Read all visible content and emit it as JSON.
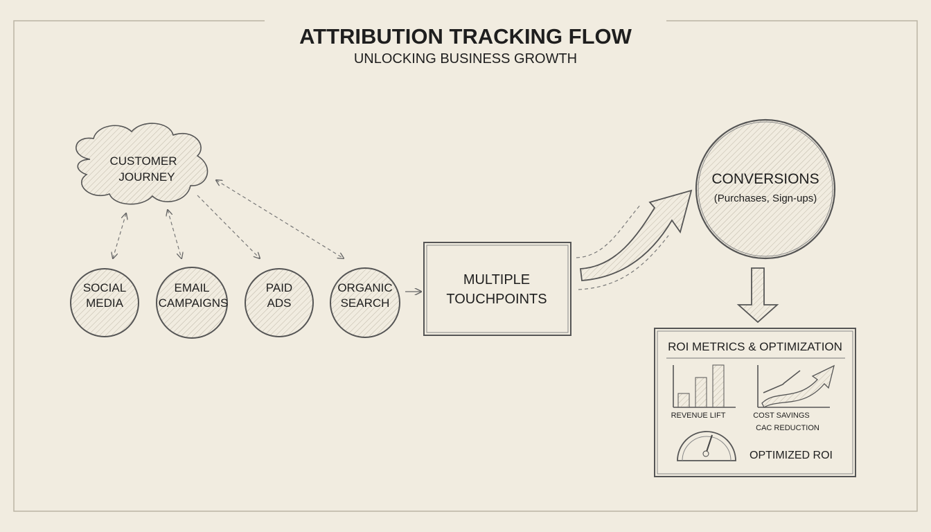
{
  "header": {
    "title": "ATTRIBUTION TRACKING FLOW",
    "subtitle": "UNLOCKING BUSINESS GROWTH"
  },
  "cloud": {
    "line1": "CUSTOMER",
    "line2": "JOURNEY"
  },
  "channels": [
    {
      "line1": "SOCIAL",
      "line2": "MEDIA"
    },
    {
      "line1": "EMAIL",
      "line2": "CAMPAIGNS"
    },
    {
      "line1": "PAID",
      "line2": "ADS"
    },
    {
      "line1": "ORGANIC",
      "line2": "SEARCH"
    }
  ],
  "touchpoints": {
    "line1": "MULTIPLE",
    "line2": "TOUCHPOINTS"
  },
  "conversions": {
    "title": "CONVERSIONS",
    "detail": "(Purchases, Sign-ups)"
  },
  "roi": {
    "title": "ROI METRICS & OPTIMIZATION",
    "revenue_label": "REVENUE LIFT",
    "cost_label": "COST SAVINGS",
    "cac_label": "CAC REDUCTION",
    "optimized_label": "OPTIMIZED ROI"
  },
  "colors": {
    "background": "#f1ece0",
    "ink": "#1e1e1e",
    "stroke": "#555555"
  }
}
